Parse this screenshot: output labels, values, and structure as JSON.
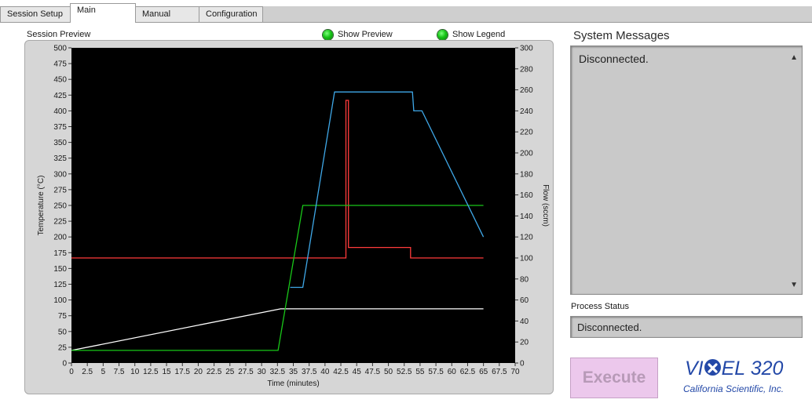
{
  "tabs": [
    {
      "label": "Session Setup",
      "active": false
    },
    {
      "label": "Main",
      "active": true
    },
    {
      "label": "Manual",
      "active": false
    },
    {
      "label": "Configuration",
      "active": false
    }
  ],
  "preview": {
    "section_label": "Session Preview",
    "show_preview_label": "Show Preview",
    "show_legend_label": "Show Legend",
    "show_preview_on": true,
    "show_legend_on": true
  },
  "chart_data": {
    "type": "line",
    "xlabel": "Time (minutes)",
    "ylabel": "Temperature (°C)",
    "y2label": "Flow (sccm)",
    "xlim": [
      0,
      70
    ],
    "ylim": [
      0,
      500
    ],
    "y2lim": [
      0,
      300
    ],
    "x_ticks": [
      "0",
      "2.5",
      "5",
      "7.5",
      "10",
      "12.5",
      "15",
      "17.5",
      "20",
      "22.5",
      "25",
      "27.5",
      "30",
      "32.5",
      "35",
      "37.5",
      "40",
      "42.5",
      "45",
      "47.5",
      "50",
      "52.5",
      "55",
      "57.5",
      "60",
      "62.5",
      "65",
      "67.5",
      "70"
    ],
    "y_ticks": [
      "0",
      "25",
      "50",
      "75",
      "100",
      "125",
      "150",
      "175",
      "200",
      "225",
      "250",
      "275",
      "300",
      "325",
      "350",
      "375",
      "400",
      "425",
      "450",
      "475",
      "500"
    ],
    "y2_ticks": [
      "0",
      "20",
      "40",
      "60",
      "80",
      "100",
      "120",
      "140",
      "160",
      "180",
      "200",
      "220",
      "240",
      "260",
      "280",
      "300"
    ],
    "background": "#000000",
    "grid": false,
    "series": [
      {
        "axis": "left",
        "color": "#ffffff",
        "x": [
          0,
          33,
          65
        ],
        "y": [
          20,
          86,
          86
        ]
      },
      {
        "axis": "right",
        "color": "#ff3b3b",
        "x": [
          0,
          43.3,
          43.3,
          43.7,
          43.7,
          53.5,
          53.5,
          65
        ],
        "y": [
          100,
          100,
          250,
          250,
          110,
          110,
          100,
          100
        ]
      },
      {
        "axis": "left",
        "color": "#19c719",
        "x": [
          0,
          32.6,
          36.5,
          65
        ],
        "y": [
          20,
          20,
          250,
          250
        ]
      },
      {
        "axis": "left",
        "color": "#3fa8e8",
        "x": [
          34.5,
          36.5,
          41.5,
          53.8,
          54,
          55.3,
          65
        ],
        "y": [
          120,
          120,
          430,
          430,
          400,
          400,
          200
        ]
      }
    ]
  },
  "messages": {
    "title": "System Messages",
    "text": "Disconnected."
  },
  "status": {
    "label": "Process Status",
    "text": "Disconnected."
  },
  "execute_label": "Execute",
  "logo": {
    "line1_a": "VI",
    "line1_b": "EL 320",
    "line2": "California Scientific, Inc."
  }
}
